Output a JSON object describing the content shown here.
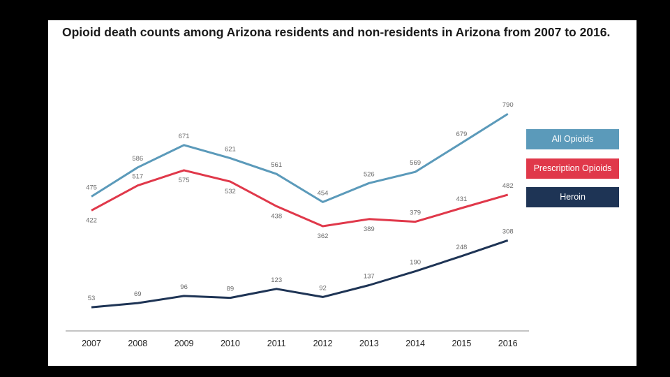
{
  "chart_data": {
    "type": "line",
    "title": "Opioid death counts among Arizona residents and non-residents in Arizona from 2007 to 2016.",
    "xlabel": "",
    "ylabel": "",
    "categories": [
      "2007",
      "2008",
      "2009",
      "2010",
      "2011",
      "2012",
      "2013",
      "2014",
      "2015",
      "2016"
    ],
    "ylim": [
      0,
      850
    ],
    "grid": false,
    "legend_position": "right",
    "series": [
      {
        "name": "All Opioids",
        "color": "#5b9aba",
        "values": [
          475,
          586,
          671,
          621,
          561,
          454,
          526,
          569,
          679,
          790
        ]
      },
      {
        "name": "Prescription Opioids",
        "color": "#e0384a",
        "values": [
          422,
          517,
          575,
          532,
          438,
          362,
          389,
          379,
          431,
          482
        ]
      },
      {
        "name": "Heroin",
        "color": "#1e3455",
        "values": [
          53,
          69,
          96,
          89,
          123,
          92,
          137,
          190,
          248,
          308
        ]
      }
    ]
  }
}
